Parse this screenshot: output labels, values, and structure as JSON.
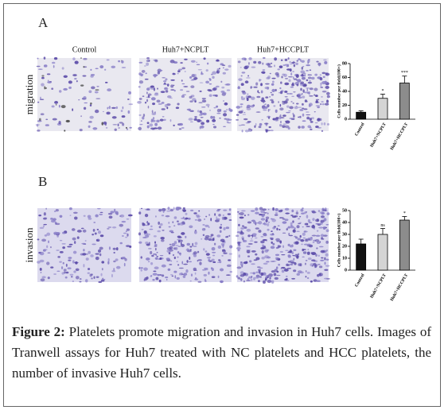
{
  "columns": [
    "Control",
    "Huh7+NCPLT",
    "Huh7+HCCPLT"
  ],
  "panels": [
    {
      "label": "A",
      "row_label": "migration"
    },
    {
      "label": "B",
      "row_label": "invasion"
    }
  ],
  "chart_data": [
    {
      "type": "bar",
      "y_label": "Cells number per field(100×)",
      "categories": [
        "Control",
        "Huh7+NCPLT",
        "Huh7+HCCPLT"
      ],
      "values": [
        10,
        30,
        52
      ],
      "errors": [
        2,
        6,
        10
      ],
      "colors": [
        "#111111",
        "#d4d4d4",
        "#8c8c8c"
      ],
      "annotations": [
        null,
        "*",
        "***"
      ],
      "ylim": [
        0,
        80
      ],
      "yticks": [
        0,
        20,
        40,
        60,
        80
      ]
    },
    {
      "type": "bar",
      "y_label": "Cells number per field(100×)",
      "categories": [
        "Control",
        "Huh7+NCPLT",
        "Huh7+HCCPLT"
      ],
      "values": [
        22,
        30,
        42
      ],
      "errors": [
        4,
        5,
        3
      ],
      "colors": [
        "#111111",
        "#d4d4d4",
        "#8c8c8c"
      ],
      "annotations": [
        null,
        "ns",
        "*"
      ],
      "ylim": [
        0,
        50
      ],
      "yticks": [
        0,
        10,
        20,
        30,
        40,
        50
      ]
    }
  ],
  "caption": {
    "label": "Figure 2:",
    "text": "Platelets promote migration and invasion in Huh7 cells. Images of Tranwell assays for Huh7 treated with NC platelets and HCC platelets, the number of invasive Huh7 cells."
  }
}
